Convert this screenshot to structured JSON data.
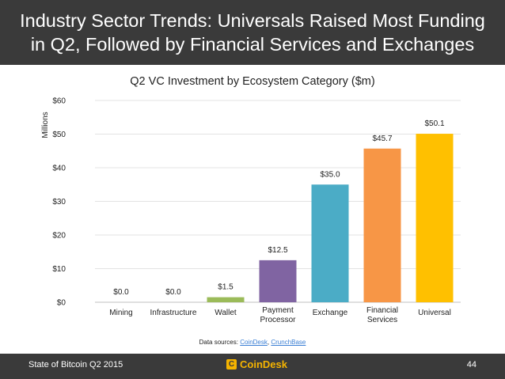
{
  "header": {
    "title_line1": "Industry Sector Trends: Universals Raised Most Funding",
    "title_line2": "in Q2, Followed by Financial Services and Exchanges"
  },
  "chart_data": {
    "type": "bar",
    "title": "Q2 VC Investment by Ecosystem Category ($m)",
    "ylabel": "Millions",
    "xlabel": "",
    "ylim": [
      0,
      60
    ],
    "yticks": [
      0,
      10,
      20,
      30,
      40,
      50,
      60
    ],
    "ytick_labels": [
      "$0",
      "$10",
      "$20",
      "$30",
      "$40",
      "$50",
      "$60"
    ],
    "grid": true,
    "categories": [
      [
        "Mining"
      ],
      [
        "Infrastructure"
      ],
      [
        "Wallet"
      ],
      [
        "Payment",
        "Processor"
      ],
      [
        "Exchange"
      ],
      [
        "Financial",
        "Services"
      ],
      [
        "Universal"
      ]
    ],
    "values": [
      0.0,
      0.0,
      1.5,
      12.5,
      35.0,
      45.7,
      50.1
    ],
    "value_labels": [
      "$0.0",
      "$0.0",
      "$1.5",
      "$12.5",
      "$35.0",
      "$45.7",
      "$50.1"
    ],
    "colors": [
      "#7f7f7f",
      "#7f7f7f",
      "#9bbb59",
      "#8064a2",
      "#4bacc6",
      "#f79646",
      "#ffc000"
    ]
  },
  "sources": {
    "label": "Data sources:",
    "link1": "CoinDesk",
    "separator": ",",
    "link2": "CrunchBase"
  },
  "footer": {
    "report": "State of Bitcoin Q2 2015",
    "logo_mark": "C",
    "logo_text": "CoinDesk",
    "page": "44"
  }
}
